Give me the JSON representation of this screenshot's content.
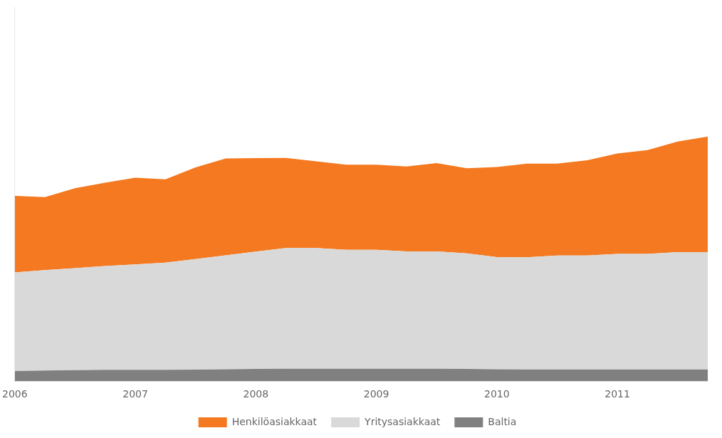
{
  "chart_data": {
    "type": "area",
    "categories": [
      "2006",
      null,
      null,
      null,
      "2007",
      null,
      null,
      null,
      "2008",
      null,
      null,
      null,
      "2009",
      null,
      null,
      null,
      "2010",
      null,
      null,
      null,
      "2011",
      null,
      null,
      null
    ],
    "series": [
      {
        "name": "Henkilöasiakkaat",
        "color": "#F47920",
        "values": [
          4.5,
          4.3,
          4.7,
          4.9,
          5.1,
          4.9,
          5.4,
          5.7,
          5.5,
          5.3,
          5.1,
          5.0,
          5.0,
          5.0,
          5.2,
          5.0,
          5.3,
          5.5,
          5.4,
          5.6,
          5.9,
          6.1,
          6.5,
          6.8
        ]
      },
      {
        "name": "Yritysasiakkaat",
        "color": "#D9D9D9",
        "values": [
          5.8,
          5.9,
          6.0,
          6.1,
          6.2,
          6.3,
          6.5,
          6.7,
          6.9,
          7.1,
          7.1,
          7.0,
          7.0,
          6.9,
          6.9,
          6.8,
          6.6,
          6.6,
          6.7,
          6.7,
          6.8,
          6.8,
          6.9,
          6.9
        ]
      },
      {
        "name": "Baltia",
        "color": "#808080",
        "values": [
          0.6,
          0.63,
          0.65,
          0.67,
          0.67,
          0.67,
          0.68,
          0.7,
          0.72,
          0.73,
          0.73,
          0.73,
          0.73,
          0.73,
          0.73,
          0.72,
          0.7,
          0.69,
          0.69,
          0.69,
          0.69,
          0.69,
          0.69,
          0.69
        ]
      }
    ],
    "ylim": [
      0,
      22
    ],
    "stacked": true,
    "tick_labels": "x",
    "grid": false,
    "legend": "bottom"
  }
}
